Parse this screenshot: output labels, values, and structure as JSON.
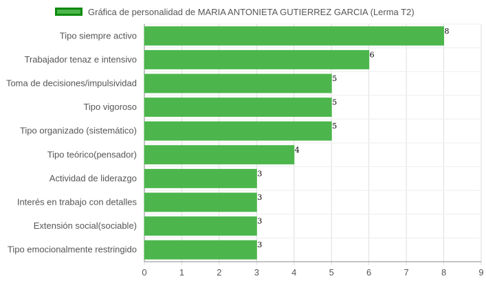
{
  "chart_data": {
    "type": "bar",
    "orientation": "horizontal",
    "categories": [
      "Tipo siempre activo",
      "Trabajador tenaz e intensivo",
      "Toma de decisiones/impulsividad",
      "Tipo vigoroso",
      "Tipo organizado (sistemático)",
      "Tipo teórico(pensador)",
      "Actividad de liderazgo",
      "Interés en trabajo con detalles",
      "Extensión social(sociable)",
      "Tipo emocionalmente restringido"
    ],
    "series": [
      {
        "name": "Gráfica de personalidad de MARIA ANTONIETA GUTIERREZ GARCIA (Lerma T2)",
        "values": [
          8,
          6,
          5,
          5,
          5,
          4,
          3,
          3,
          3,
          3
        ]
      }
    ],
    "xlim": [
      0,
      9
    ],
    "xticks": [
      0,
      1,
      2,
      3,
      4,
      5,
      6,
      7,
      8,
      9
    ],
    "grid": true,
    "legend_position": "top",
    "data_labels": true,
    "colors": {
      "bar_fill": "#4cb64c",
      "bar_border": "#0d8a0d",
      "grid": "#dddddd",
      "axis": "#888888"
    }
  }
}
